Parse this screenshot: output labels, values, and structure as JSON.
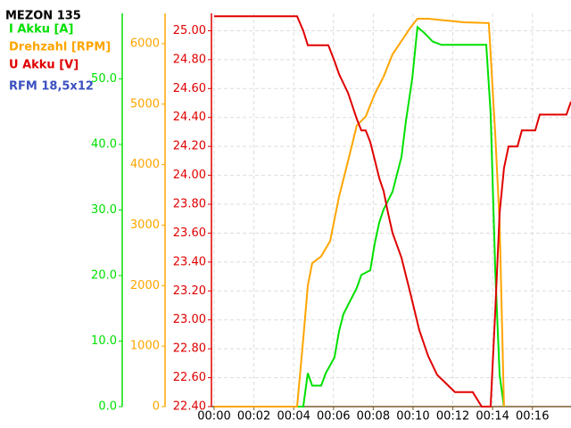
{
  "chart_data": {
    "type": "line",
    "title": "MEZON 135",
    "subtitle": "RFM 18,5x12",
    "xlim": [
      0,
      17.94
    ],
    "xticks": [
      {
        "value": 0,
        "label": "00:00"
      },
      {
        "value": 2,
        "label": "00:02"
      },
      {
        "value": 4,
        "label": "00:04"
      },
      {
        "value": 6,
        "label": "00:06"
      },
      {
        "value": 8,
        "label": "00:08"
      },
      {
        "value": 10,
        "label": "00:10"
      },
      {
        "value": 12,
        "label": "00:12"
      },
      {
        "value": 14,
        "label": "00:14"
      },
      {
        "value": 16,
        "label": "00:16"
      }
    ],
    "ylim": [
      0,
      60
    ],
    "yticks": [
      {
        "value": 0,
        "label": "0.0"
      },
      {
        "value": 10,
        "label": "10.0"
      },
      {
        "value": 20,
        "label": "20.0"
      },
      {
        "value": 30,
        "label": "30.0"
      },
      {
        "value": 40,
        "label": "40.0"
      },
      {
        "value": 50,
        "label": "50.0"
      }
    ],
    "y2lim": [
      0,
      6500
    ],
    "y2ticks": [
      0,
      1000,
      2000,
      3000,
      4000,
      5000,
      6000
    ],
    "y3lim": [
      22.4,
      25.12
    ],
    "y3ticks": [
      {
        "value": 22.4,
        "label": "22.40"
      },
      {
        "value": 22.6,
        "label": "22.60"
      },
      {
        "value": 22.8,
        "label": "22.80"
      },
      {
        "value": 23.0,
        "label": "23.00"
      },
      {
        "value": 23.2,
        "label": "23.20"
      },
      {
        "value": 23.4,
        "label": "23.40"
      },
      {
        "value": 23.6,
        "label": "23.60"
      },
      {
        "value": 23.8,
        "label": "23.80"
      },
      {
        "value": 24.0,
        "label": "24.00"
      },
      {
        "value": 24.2,
        "label": "24.20"
      },
      {
        "value": 24.4,
        "label": "24.40"
      },
      {
        "value": 24.6,
        "label": "24.60"
      },
      {
        "value": 24.8,
        "label": "24.80"
      },
      {
        "value": 25.0,
        "label": "25.00"
      }
    ],
    "grid": true,
    "series": [
      {
        "name": "I Akku [A]",
        "color": "#00e000",
        "axis": "y",
        "x": [
          0,
          4.48,
          4.71,
          4.93,
          5.38,
          5.61,
          6.05,
          6.28,
          6.5,
          6.73,
          6.95,
          7.17,
          7.4,
          7.85,
          8.07,
          8.3,
          8.52,
          8.97,
          9.42,
          9.64,
          9.96,
          10.22,
          10.54,
          10.99,
          11.43,
          13.68,
          13.9,
          14.13,
          14.35,
          14.57
        ],
        "values": [
          0,
          0,
          5.1,
          3.2,
          3.2,
          5.1,
          7.5,
          11.5,
          14.1,
          15.5,
          16.8,
          18.1,
          20.1,
          20.8,
          24.8,
          28.1,
          30.1,
          32.8,
          38.1,
          43.5,
          50.1,
          57.9,
          57.1,
          55.7,
          55.2,
          55.2,
          44.8,
          20.8,
          4.8,
          0
        ]
      },
      {
        "name": "Drehzahl [RPM]",
        "color": "#ffa500",
        "axis": "y2",
        "x": [
          0,
          4.17,
          4.48,
          4.71,
          4.93,
          5.38,
          5.83,
          6.28,
          6.73,
          7.17,
          7.62,
          8.07,
          8.52,
          8.97,
          9.42,
          9.87,
          10.22,
          10.76,
          11.66,
          12.56,
          13.81,
          14.13,
          14.35,
          14.57
        ],
        "values": [
          0,
          0,
          1118,
          2000,
          2368,
          2485,
          2735,
          3470,
          4059,
          4647,
          4794,
          5162,
          5456,
          5824,
          6044,
          6265,
          6412,
          6412,
          6382,
          6353,
          6340,
          4500,
          3030,
          0
        ]
      },
      {
        "name": "U Akku [V]",
        "color": "#e00000",
        "axis": "y3",
        "x": [
          0,
          4.17,
          4.48,
          4.71,
          5.74,
          6.05,
          6.28,
          6.73,
          6.95,
          7.17,
          7.4,
          7.62,
          7.85,
          8.07,
          8.3,
          8.52,
          8.74,
          8.97,
          9.42,
          9.87,
          10.31,
          10.76,
          11.21,
          12.11,
          13.0,
          13.45,
          13.9,
          14.13,
          14.35,
          14.57,
          14.8,
          15.25,
          15.47,
          16.14,
          16.37,
          17.71,
          17.94
        ],
        "values": [
          25.1,
          25.1,
          25.0,
          24.9,
          24.9,
          24.79,
          24.7,
          24.57,
          24.48,
          24.39,
          24.31,
          24.31,
          24.23,
          24.11,
          23.98,
          23.89,
          23.74,
          23.6,
          23.43,
          23.18,
          22.93,
          22.75,
          22.62,
          22.5,
          22.5,
          22.4,
          22.4,
          23.06,
          23.74,
          24.05,
          24.2,
          24.2,
          24.31,
          24.31,
          24.42,
          24.42,
          24.51
        ]
      }
    ]
  }
}
